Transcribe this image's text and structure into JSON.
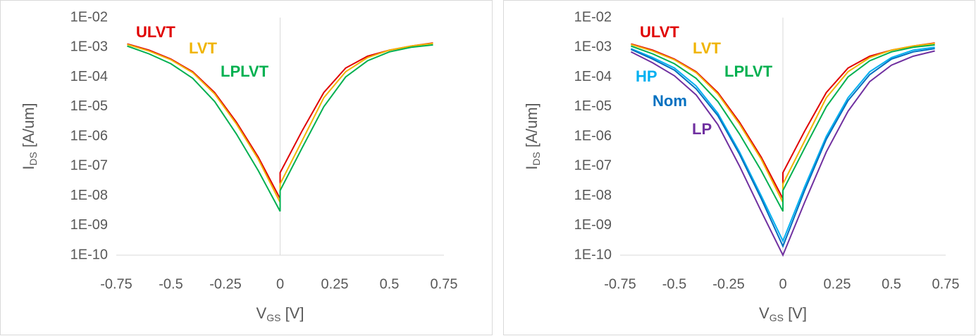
{
  "chart_data": [
    {
      "type": "line",
      "log_y": true,
      "ylabel": {
        "main": "I",
        "sub": "DS",
        "rest": " [A/um]"
      },
      "xlabel": {
        "main": "V",
        "sub": "GS",
        "rest": " [V]"
      },
      "x": [
        -0.7,
        -0.6,
        -0.5,
        -0.4,
        -0.3,
        -0.2,
        -0.1,
        0,
        0,
        0.1,
        0.2,
        0.3,
        0.4,
        0.5,
        0.6,
        0.7
      ],
      "xlim": [
        -0.75,
        0.75
      ],
      "xticks": [
        -0.75,
        -0.5,
        -0.25,
        0,
        0.25,
        0.5,
        0.75
      ],
      "ylim": [
        1e-10,
        0.01
      ],
      "yticks": [
        {
          "value": 1e-10,
          "label": "1E-10"
        },
        {
          "value": 1e-09,
          "label": "1E-09"
        },
        {
          "value": 1e-08,
          "label": "1E-08"
        },
        {
          "value": 1e-07,
          "label": "1E-07"
        },
        {
          "value": 1e-06,
          "label": "1E-06"
        },
        {
          "value": 1e-05,
          "label": "1E-05"
        },
        {
          "value": 0.0001,
          "label": "1E-04"
        },
        {
          "value": 0.001,
          "label": "1E-03"
        },
        {
          "value": 0.01,
          "label": "1E-02"
        }
      ],
      "series": [
        {
          "name": "ULVT",
          "color": "#e00000",
          "values": [
            0.0013,
            0.0008,
            0.0004,
            0.00015,
            3e-05,
            3e-06,
            2e-07,
            8e-09,
            6e-08,
            1.5e-06,
            3e-05,
            0.0002,
            0.0005,
            0.0008,
            0.0011,
            0.0014
          ]
        },
        {
          "name": "LVT",
          "color": "#f0b400",
          "values": [
            0.00125,
            0.00075,
            0.00038,
            0.00014,
            2.7e-05,
            2.6e-06,
            1.7e-07,
            6e-09,
            2.5e-08,
            7e-07,
            2e-05,
            0.00015,
            0.00045,
            0.0008,
            0.0011,
            0.00135
          ]
        },
        {
          "name": "LPLVT",
          "color": "#00b050",
          "values": [
            0.0011,
            0.0006,
            0.00028,
            9e-05,
            1.5e-05,
            1.2e-06,
            7e-08,
            3e-09,
            1.5e-08,
            4e-07,
            1e-05,
            0.0001,
            0.00035,
            0.0007,
            0.001,
            0.0012
          ]
        }
      ]
    },
    {
      "type": "line",
      "log_y": true,
      "ylabel": {
        "main": "I",
        "sub": "DS",
        "rest": " [A/um]"
      },
      "xlabel": {
        "main": "V",
        "sub": "GS",
        "rest": " [V]"
      },
      "x": [
        -0.7,
        -0.6,
        -0.5,
        -0.4,
        -0.3,
        -0.2,
        -0.1,
        0,
        0,
        0.1,
        0.2,
        0.3,
        0.4,
        0.5,
        0.6,
        0.7
      ],
      "xlim": [
        -0.75,
        0.75
      ],
      "xticks": [
        -0.75,
        -0.5,
        -0.25,
        0,
        0.25,
        0.5,
        0.75
      ],
      "ylim": [
        1e-10,
        0.01
      ],
      "yticks": [
        {
          "value": 1e-10,
          "label": "1E-10"
        },
        {
          "value": 1e-09,
          "label": "1E-09"
        },
        {
          "value": 1e-08,
          "label": "1E-08"
        },
        {
          "value": 1e-07,
          "label": "1E-07"
        },
        {
          "value": 1e-06,
          "label": "1E-06"
        },
        {
          "value": 1e-05,
          "label": "1E-05"
        },
        {
          "value": 0.0001,
          "label": "1E-04"
        },
        {
          "value": 0.001,
          "label": "1E-03"
        },
        {
          "value": 0.01,
          "label": "1E-02"
        }
      ],
      "series": [
        {
          "name": "ULVT",
          "color": "#e00000",
          "values": [
            0.0013,
            0.0008,
            0.0004,
            0.00015,
            3e-05,
            3e-06,
            2e-07,
            8e-09,
            6e-08,
            1.5e-06,
            3e-05,
            0.0002,
            0.0005,
            0.0008,
            0.0011,
            0.0014
          ]
        },
        {
          "name": "LVT",
          "color": "#f0b400",
          "values": [
            0.00125,
            0.00075,
            0.00038,
            0.00014,
            2.7e-05,
            2.6e-06,
            1.7e-07,
            6e-09,
            2.5e-08,
            7e-07,
            2e-05,
            0.00015,
            0.00045,
            0.0008,
            0.0011,
            0.00135
          ]
        },
        {
          "name": "LPLVT",
          "color": "#00b050",
          "values": [
            0.0011,
            0.0006,
            0.00028,
            9e-05,
            1.5e-05,
            1.2e-06,
            7e-08,
            3e-09,
            1.5e-08,
            4e-07,
            1e-05,
            0.0001,
            0.00035,
            0.0007,
            0.001,
            0.0012
          ]
        },
        {
          "name": "HP",
          "color": "#00b0f0",
          "values": [
            0.0009,
            0.00045,
            0.0002,
            5e-05,
            6e-06,
            3e-07,
            1e-08,
            3e-10,
            3e-10,
            2e-08,
            1e-06,
            2e-05,
            0.00015,
            0.00045,
            0.0008,
            0.001
          ]
        },
        {
          "name": "Nom",
          "color": "#0070c0",
          "values": [
            0.00085,
            0.0004,
            0.00017,
            4e-05,
            5e-06,
            2.5e-07,
            8e-09,
            2e-10,
            2e-10,
            1.5e-08,
            8e-07,
            1.6e-05,
            0.00012,
            0.0004,
            0.0007,
            0.0009
          ]
        },
        {
          "name": "LP",
          "color": "#7030a0",
          "values": [
            0.0007,
            0.0003,
            0.00011,
            2.5e-05,
            2.5e-06,
            1e-07,
            3e-09,
            1e-10,
            1e-10,
            6e-09,
            3e-07,
            7e-06,
            7e-05,
            0.00025,
            0.0005,
            0.00075
          ]
        }
      ]
    }
  ]
}
